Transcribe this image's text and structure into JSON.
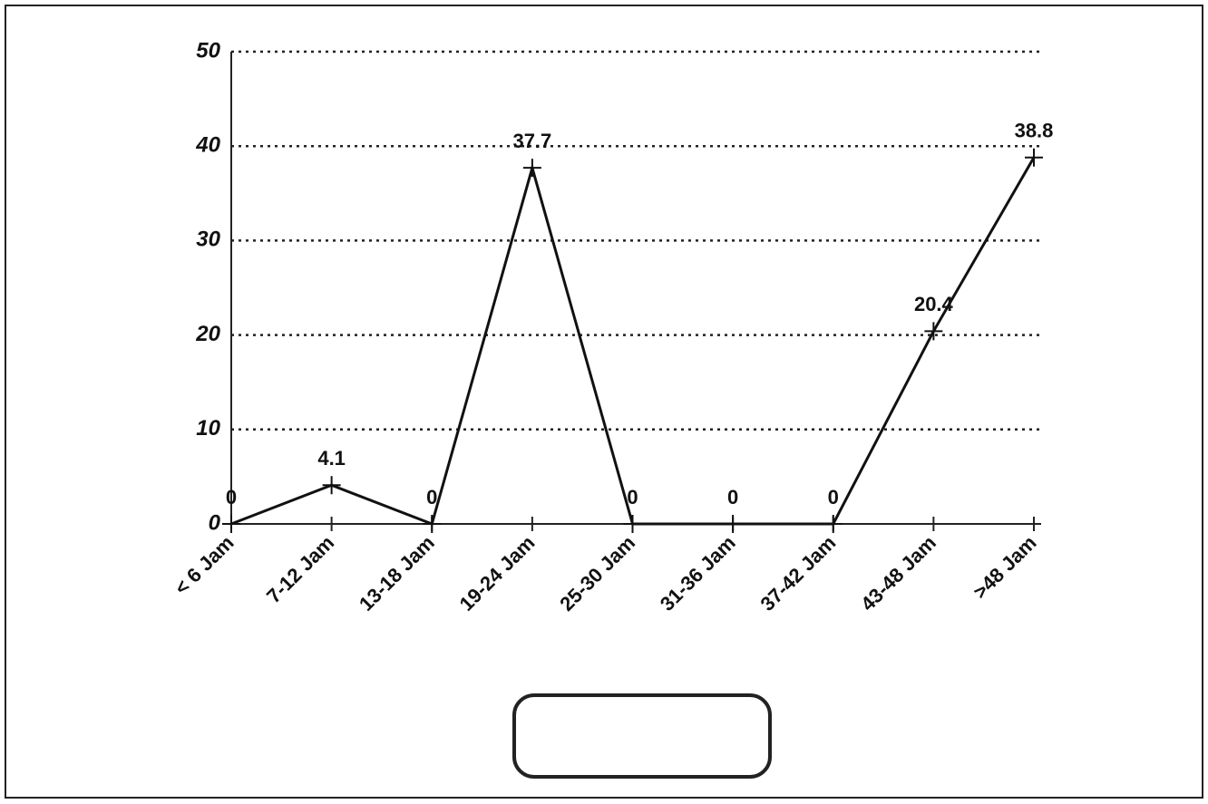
{
  "chart_data": {
    "type": "line",
    "categories": [
      "< 6 Jam",
      "7-12 Jam",
      "13-18 Jam",
      "19-24 Jam",
      "25-30 Jam",
      "31-36 Jam",
      "37-42 Jam",
      "43-48 Jam",
      ">48 Jam"
    ],
    "values": [
      0,
      4.1,
      0,
      37.7,
      0,
      0,
      0,
      20.4,
      38.8
    ],
    "color": "#111111",
    "ylim": [
      0,
      50
    ],
    "yticks": [
      0,
      10,
      20,
      30,
      40,
      50
    ],
    "grid": true
  }
}
